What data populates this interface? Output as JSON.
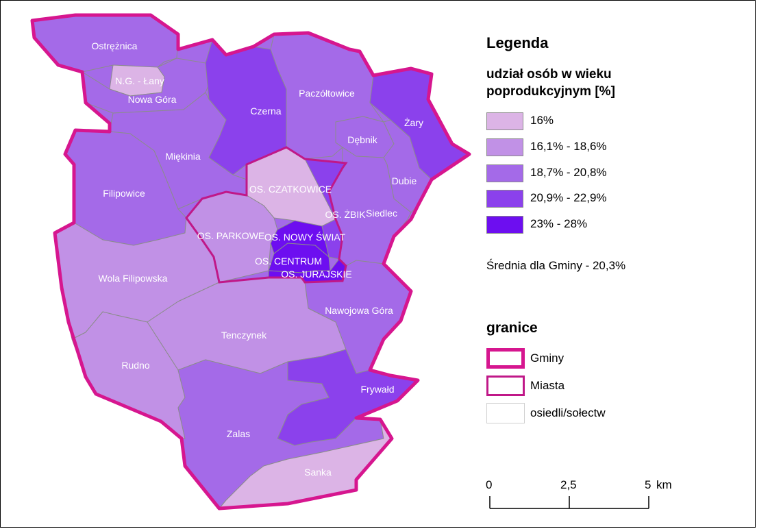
{
  "legend": {
    "title": "Legenda",
    "subtitle": "udział osób w wieku poprodukcyjnym [%]",
    "classes": [
      {
        "label": "16%",
        "color": "#dcb4e6"
      },
      {
        "label": "16,1% - 18,6%",
        "color": "#c191e6"
      },
      {
        "label": "18,7% - 20,8%",
        "color": "#a46ae8"
      },
      {
        "label": "20,9% - 22,9%",
        "color": "#8b41ec"
      },
      {
        "label": "23% - 28%",
        "color": "#6d0ef0"
      }
    ],
    "average": "Średnia dla Gminy - 20,3%",
    "boundaries_title": "granice",
    "boundaries": [
      {
        "label": "Gminy",
        "color": "#d6168f"
      },
      {
        "label": "Miasta",
        "color": "#c01888"
      },
      {
        "label": "osiedli/sołectw",
        "color": "#d0d0d0"
      }
    ]
  },
  "scalebar": {
    "ticks": [
      "0",
      "2,5",
      "5"
    ],
    "unit": "km"
  },
  "regions": {
    "ostreznica": {
      "name": "Ostrężnica",
      "class": 2
    },
    "ng_lany": {
      "name": "N.G. - Łany",
      "class": 0
    },
    "nowa_gora": {
      "name": "Nowa Góra",
      "class": 2
    },
    "czerna": {
      "name": "Czerna",
      "class": 3
    },
    "paczoltowice": {
      "name": "Paczółtowice",
      "class": 2
    },
    "zary": {
      "name": "Żary",
      "class": 3
    },
    "debnik": {
      "name": "Dębnik",
      "class": 2
    },
    "dubie": {
      "name": "Dubie",
      "class": 2
    },
    "siedlec": {
      "name": "Siedlec",
      "class": 2
    },
    "miekinia": {
      "name": "Miękinia",
      "class": 2
    },
    "filipowice": {
      "name": "Filipowice",
      "class": 2
    },
    "os_czatkowice": {
      "name": "OS. CZATKOWICE",
      "class": 0
    },
    "os_parkowe": {
      "name": "OS. PARKOWE",
      "class": 1
    },
    "os_zbik": {
      "name": "OS. ŻBIK",
      "class": 3
    },
    "os_nowy_swiat": {
      "name": "OS. NOWY ŚWIAT",
      "class": 4
    },
    "os_centrum": {
      "name": "OS. CENTRUM",
      "class": 4
    },
    "os_jurajskie": {
      "name": "OS. JURAJSKIE",
      "class": 4
    },
    "wola_filipowska": {
      "name": "Wola Filipowska",
      "class": 1
    },
    "nawojowa_gora": {
      "name": "Nawojowa Góra",
      "class": 2
    },
    "tenczynek": {
      "name": "Tenczynek",
      "class": 1
    },
    "rudno": {
      "name": "Rudno",
      "class": 1
    },
    "frywald": {
      "name": "Frywałd",
      "class": 3
    },
    "zalas": {
      "name": "Zalas",
      "class": 2
    },
    "sanka": {
      "name": "Sanka",
      "class": 0
    }
  }
}
